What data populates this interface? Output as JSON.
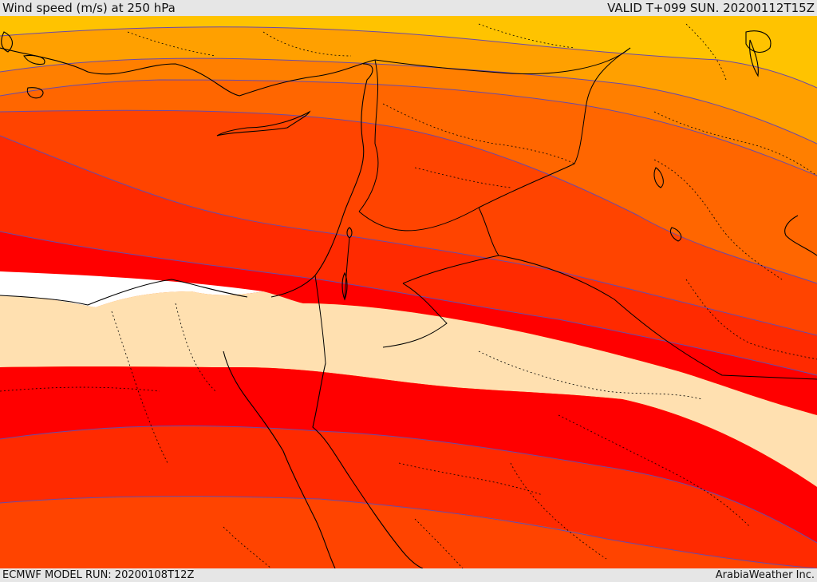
{
  "header": {
    "title": "Wind speed (m/s) at 250 hPa",
    "valid_time": "VALID T+099 SUN. 20200112T15Z"
  },
  "footer": {
    "model_run": "ECMWF MODEL RUN: 20200108T12Z",
    "credit": "ArabiaWeather Inc."
  },
  "colors": {
    "band_1": "#ffc300",
    "band_2": "#ffa000",
    "band_3": "#ff7f00",
    "band_4": "#ff6600",
    "band_5": "#ff4400",
    "band_6": "#ff2a00",
    "band_7": "#ff0000",
    "band_low": "#ffe0b0",
    "band_calm": "#ffffff",
    "contour": "#6a4aa8",
    "border": "#000000"
  }
}
